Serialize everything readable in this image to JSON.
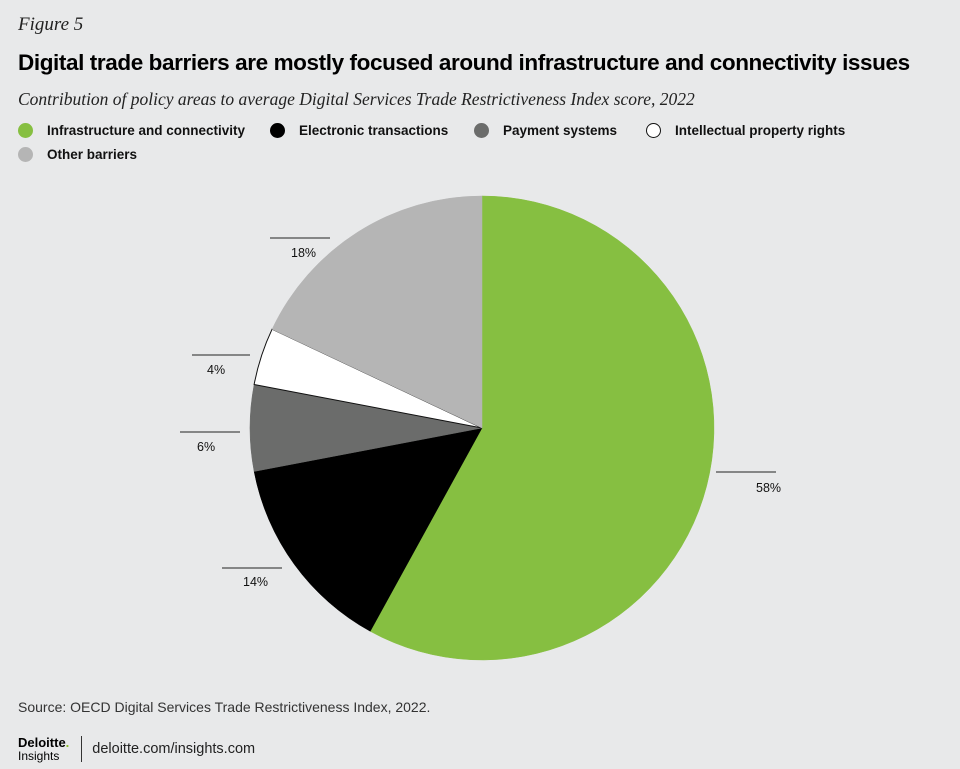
{
  "figure_label": "Figure 5",
  "title": "Digital trade barriers are mostly focused around infrastructure and connectivity issues",
  "subtitle": "Contribution of policy areas to average Digital Services Trade Restrictiveness Index score, 2022",
  "source": "Source: OECD Digital Services Trade Restrictiveness Index, 2022.",
  "footer": {
    "brand_name": "Deloitte",
    "brand_dot": ".",
    "brand_sub": "Insights",
    "site": "deloitte.com/insights.com"
  },
  "chart_data": {
    "type": "pie",
    "start_angle_deg": 0,
    "direction": "clockwise",
    "slices": [
      {
        "name": "Infrastructure and connectivity",
        "value": 58,
        "label": "58%",
        "color": "#86bf41",
        "stroke": "#86bf41"
      },
      {
        "name": "Electronic transactions",
        "value": 14,
        "label": "14%",
        "color": "#000000",
        "stroke": "#000000"
      },
      {
        "name": "Payment systems",
        "value": 6,
        "label": "6%",
        "color": "#6b6c6b",
        "stroke": "#6b6c6b"
      },
      {
        "name": "Intellectual property rights",
        "value": 4,
        "label": "4%",
        "color": "#ffffff",
        "stroke": "#111111"
      },
      {
        "name": "Other barriers",
        "value": 18,
        "label": "18%",
        "color": "#b5b5b5",
        "stroke": "#b5b5b5"
      }
    ]
  }
}
